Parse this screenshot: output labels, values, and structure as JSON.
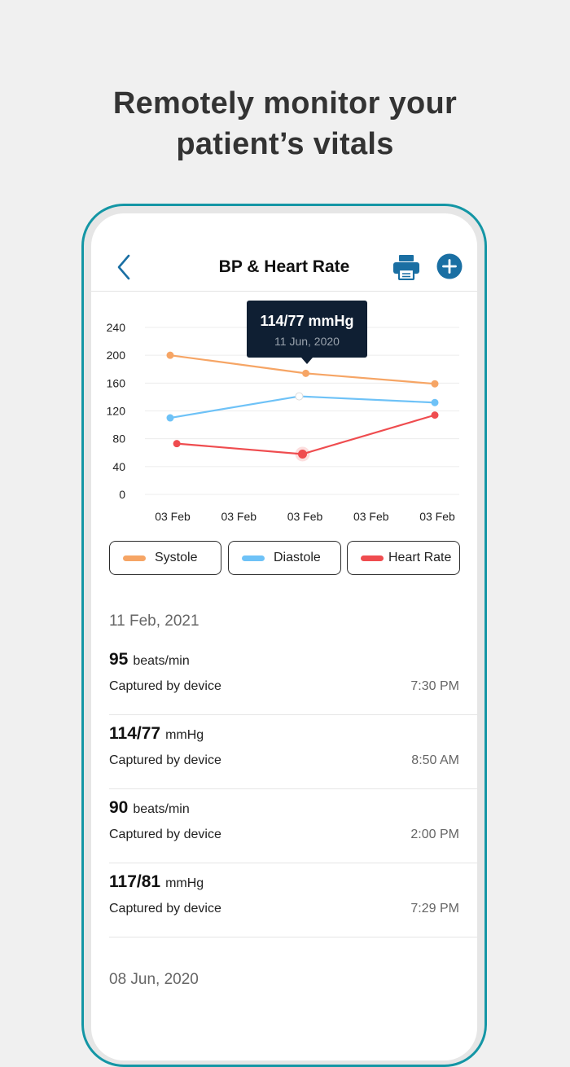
{
  "headline": {
    "line1": "Remotely monitor your",
    "line2": "patient’s vitals"
  },
  "header": {
    "title": "BP & Heart Rate",
    "back_icon": "chevron-left-icon",
    "print_icon": "printer-icon",
    "add_icon": "plus-circle-icon"
  },
  "colors": {
    "systole": "#f6a565",
    "diastole": "#6ec2f7",
    "heart_rate": "#ef4c4f",
    "accent": "#1a6fa3",
    "tooltip_bg": "#0f1f33",
    "frame": "#1496a5"
  },
  "tooltip": {
    "value": "114/77 mmHg",
    "date": "11 Jun, 2020"
  },
  "chart_data": {
    "type": "line",
    "categories": [
      "03 Feb",
      "03 Feb",
      "03 Feb",
      "03 Feb",
      "03 Feb"
    ],
    "y_ticks": [
      "240",
      "200",
      "160",
      "120",
      "80",
      "40",
      "0"
    ],
    "ylim": [
      0,
      240
    ],
    "grid": true,
    "series": [
      {
        "name": "Systole",
        "points": [
          [
            0.0,
            200
          ],
          [
            2.05,
            174
          ],
          [
            4.0,
            159
          ]
        ]
      },
      {
        "name": "Diastole",
        "points": [
          [
            0.0,
            110
          ],
          [
            1.95,
            141
          ],
          [
            4.0,
            132
          ]
        ]
      },
      {
        "name": "Heart Rate",
        "points": [
          [
            0.1,
            73
          ],
          [
            2.0,
            58
          ],
          [
            4.0,
            114
          ]
        ]
      }
    ]
  },
  "legend": [
    "Systole",
    "Diastole",
    "Heart Rate"
  ],
  "sections": [
    {
      "date": "11 Feb, 2021",
      "rows": [
        {
          "value": "95",
          "unit": "beats/min",
          "source": "Captured by device",
          "time": "7:30 PM"
        },
        {
          "value": "114/77",
          "unit": "mmHg",
          "source": "Captured by device",
          "time": "8:50 AM"
        },
        {
          "value": "90",
          "unit": "beats/min",
          "source": "Captured by device",
          "time": "2:00 PM"
        },
        {
          "value": "117/81",
          "unit": "mmHg",
          "source": "Captured by device",
          "time": "7:29 PM"
        }
      ]
    },
    {
      "date": "08 Jun, 2020",
      "rows": []
    }
  ]
}
